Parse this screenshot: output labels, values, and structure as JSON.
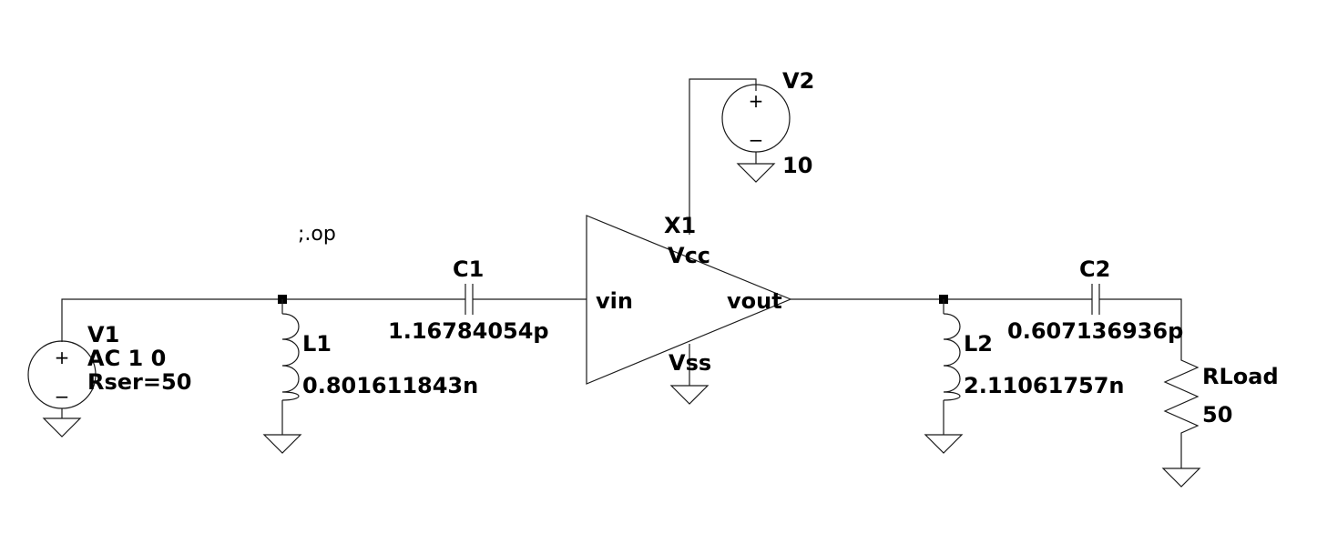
{
  "directive": ";.op",
  "components": {
    "V1": {
      "name": "V1",
      "value": "AC 1 0",
      "param": "Rser=50"
    },
    "L1": {
      "name": "L1",
      "value": "0.801611843n"
    },
    "C1": {
      "name": "C1",
      "value": "1.16784054p"
    },
    "X1": {
      "name": "X1",
      "pin_vcc": "Vcc",
      "pin_vss": "Vss",
      "pin_in": "vin",
      "pin_out": "vout"
    },
    "V2": {
      "name": "V2",
      "value": "10"
    },
    "L2": {
      "name": "L2",
      "value": "2.11061757n"
    },
    "C2": {
      "name": "C2",
      "value": "0.607136936p"
    },
    "RLoad": {
      "name": "RLoad",
      "value": "50"
    }
  },
  "source_symbol": {
    "plus": "+",
    "minus": "−"
  }
}
